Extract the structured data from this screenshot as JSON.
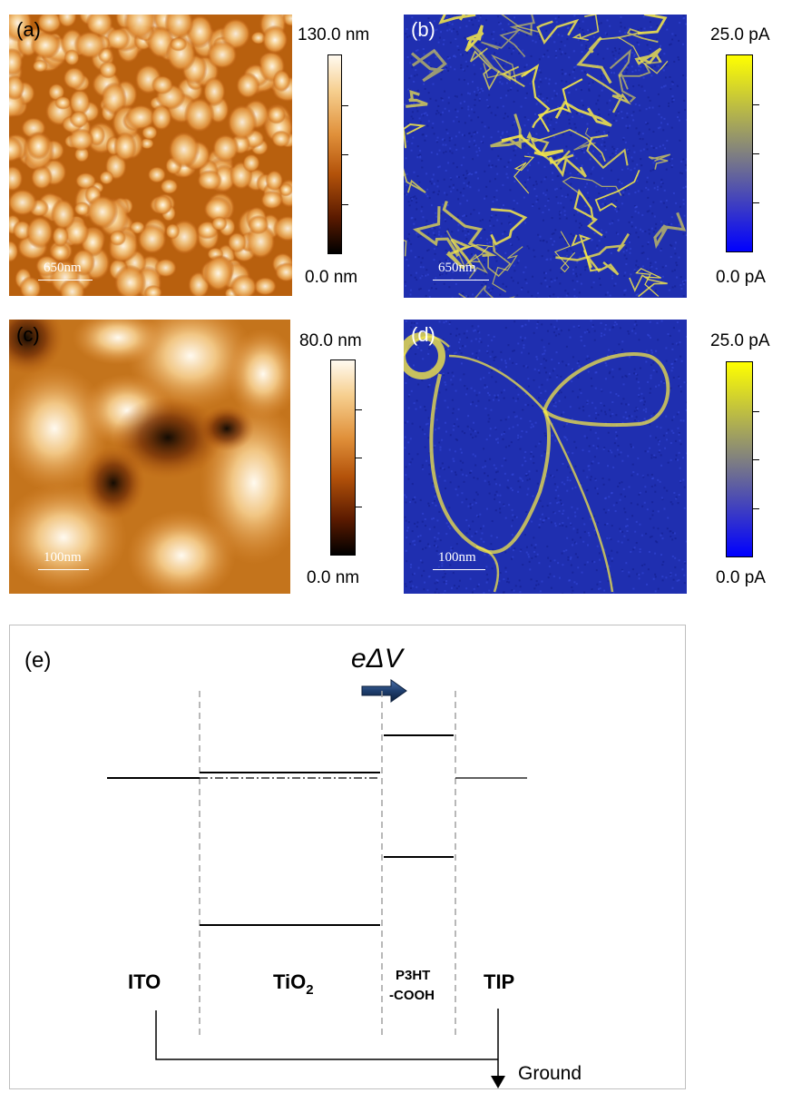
{
  "panels": {
    "a": {
      "label": "(a)",
      "scale": "650nm",
      "cbar_max": "130.0 nm",
      "cbar_min": "0.0 nm"
    },
    "b": {
      "label": "(b)",
      "scale": "650nm",
      "cbar_max": "25.0 pA",
      "cbar_min": "0.0 pA"
    },
    "c": {
      "label": "(c)",
      "scale": "100nm",
      "cbar_max": "80.0 nm",
      "cbar_min": "0.0 nm"
    },
    "d": {
      "label": "(d)",
      "scale": "100nm",
      "cbar_max": "25.0 pA",
      "cbar_min": "0.0 pA"
    }
  },
  "colors": {
    "afm_map": [
      "#000000",
      "#5a1a00",
      "#b3520a",
      "#e0903a",
      "#f6cf8f",
      "#fffaf0"
    ],
    "current_map": [
      "#0000ff",
      "#808080",
      "#ffff00"
    ],
    "current_background": "#1f2fb0",
    "current_highlight": "#f3e64a"
  },
  "diagram": {
    "label": "(e)",
    "energy_label": "eΔV",
    "layers": [
      "ITO",
      "TiO",
      "P3HT",
      "-COOH",
      "TIP"
    ],
    "tio2_subscript": "2",
    "ground_label": "Ground"
  }
}
